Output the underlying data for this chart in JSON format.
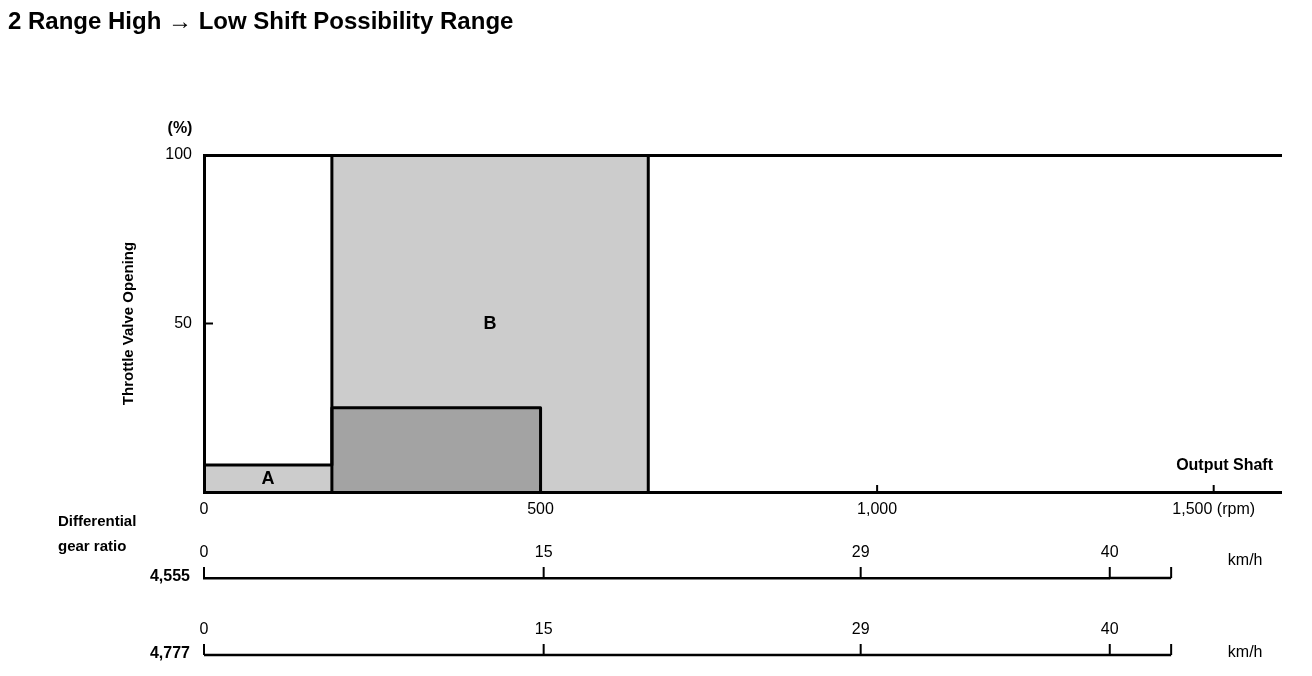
{
  "chart_data": [
    {
      "type": "area",
      "title": "2 Range High → Low Shift Possibility Range",
      "xlabel": "Output Shaft",
      "ylabel": "Throttle Valve Opening",
      "x2label": "km/h",
      "annotations": [
        "(%)",
        "Differential gear ratio",
        "4,555"
      ],
      "series": [
        {
          "name": "A",
          "color": "#000000",
          "x": [
            0,
            190,
            190,
            500,
            500
          ],
          "values": [
            8,
            8,
            25,
            25,
            0
          ]
        },
        {
          "name": "B",
          "color": "#000000",
          "x": [
            190,
            190,
            660,
            660
          ],
          "values": [
            0,
            100,
            100,
            0
          ]
        }
      ],
      "xlim": [
        0,
        1600
      ],
      "xticks": [
        0,
        500,
        {
          "value": 1000,
          "label": "1,000"
        },
        {
          "value": 1500,
          "label": "1,500 (rpm)"
        }
      ],
      "ylim": [
        0,
        100
      ],
      "yticks": [
        50,
        100
      ],
      "x2lim": [
        0,
        40
      ],
      "x2ticks": [
        0,
        15,
        29,
        40
      ]
    },
    {
      "type": "other",
      "annotations": [
        "4,777",
        "0",
        "15",
        "29",
        "40",
        "km/h"
      ]
    }
  ]
}
